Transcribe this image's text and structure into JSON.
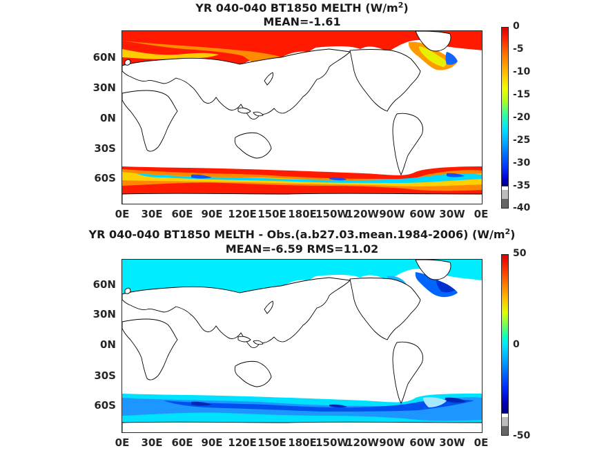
{
  "panel1": {
    "title_line1_prefix": "YR 040-040 BT1850  MELTH (W/m",
    "title_line1_sup": "2",
    "title_line1_suffix": ")",
    "title_line2": "MEAN=-1.61",
    "colorbar_labels": [
      "0",
      "-5",
      "-10",
      "-15",
      "-20",
      "-25",
      "-30",
      "-35",
      "-40"
    ]
  },
  "panel2": {
    "title_line1_prefix": "YR 040-040 BT1850 MELTH - Obs.(a.b27.03.mean.1984-2006) (W/m",
    "title_line1_sup": "2",
    "title_line1_suffix": ")",
    "title_line2": "MEAN=-6.59 RMS=11.02",
    "colorbar_labels": [
      "50",
      "0",
      "-50"
    ]
  },
  "y_tick_labels": [
    "60N",
    "30N",
    "0N",
    "30S",
    "60S"
  ],
  "x_tick_labels": [
    "0E",
    "30E",
    "60E",
    "90E",
    "120E",
    "150E",
    "180E",
    "150W",
    "120W",
    "90W",
    "60W",
    "30W",
    "0E"
  ],
  "colors": {
    "melt_strong": "#ff0000",
    "melt_orange": "#ff8c00",
    "melt_yellow": "#e6f000",
    "melt_cyan": "#00e5ff",
    "melt_blue": "#1464ff",
    "diff_cyan": "#00ecff",
    "diff_lightblue": "#19b4ff",
    "diff_blue": "#0064ff",
    "outline": "#000000"
  }
}
